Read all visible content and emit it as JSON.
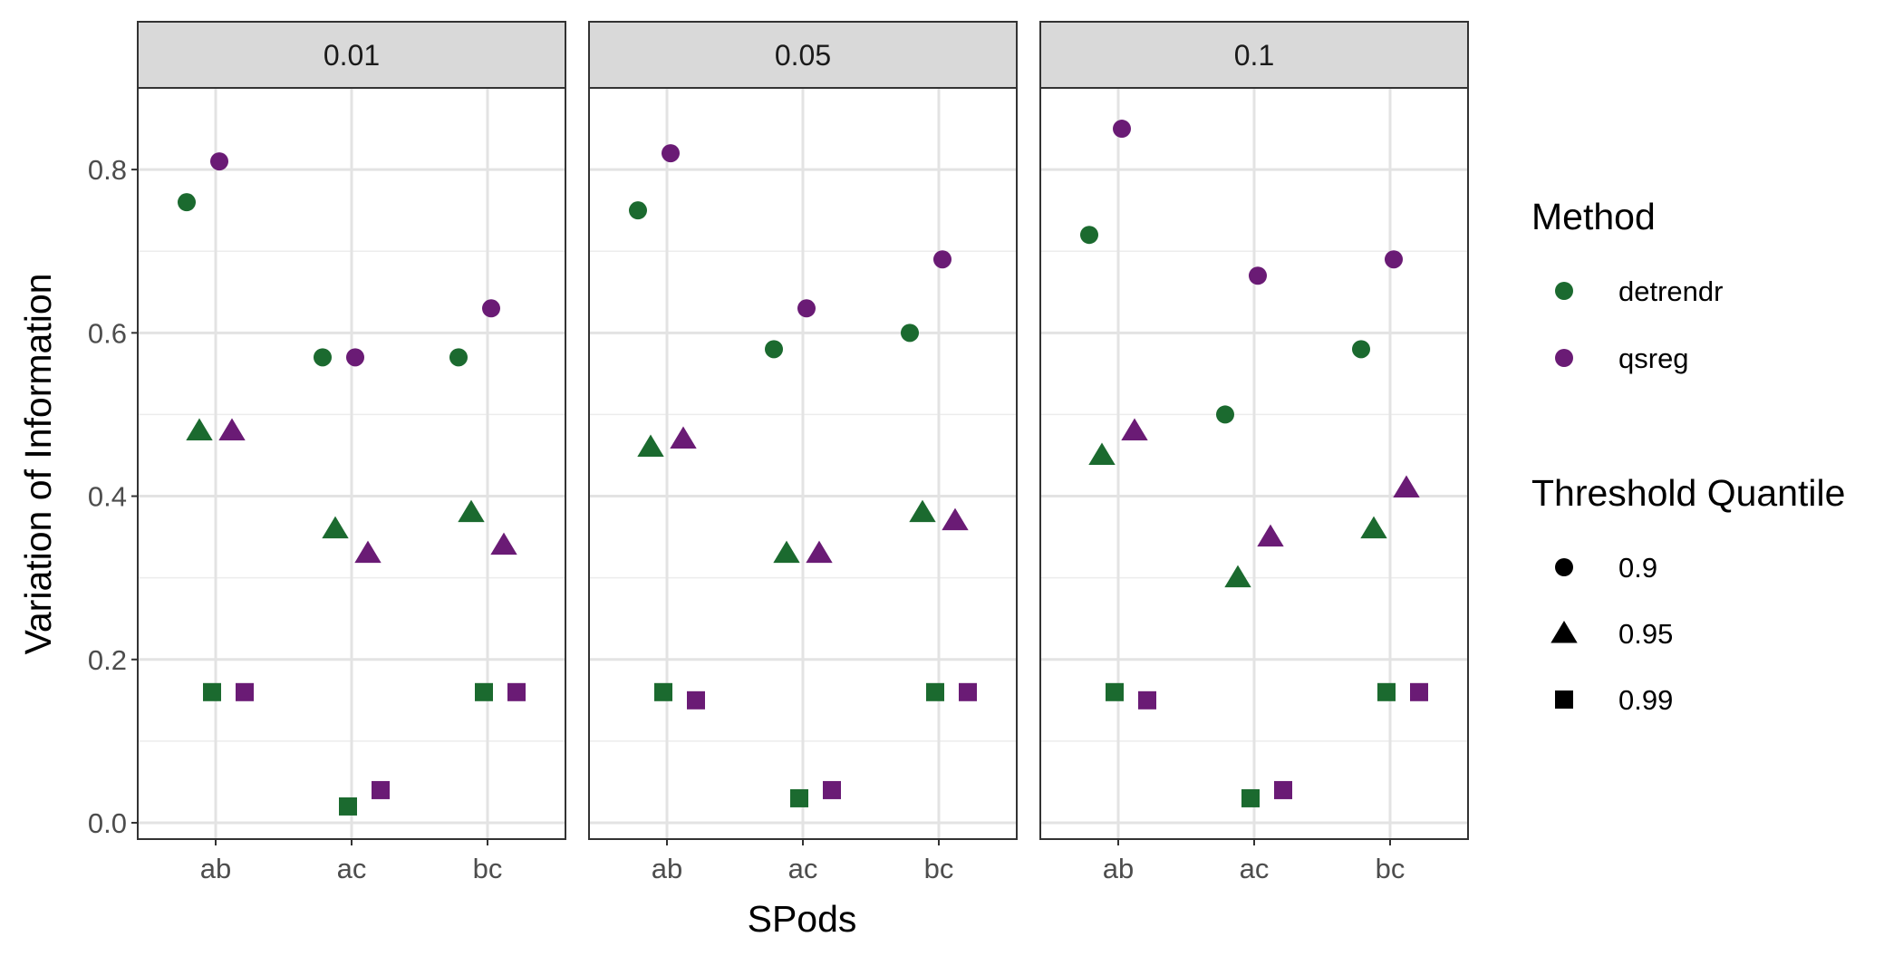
{
  "chart_data": {
    "type": "scatter",
    "xlabel": "SPods",
    "ylabel": "Variation of Information",
    "ylim": [
      -0.02,
      0.9
    ],
    "y_ticks": [
      0.0,
      0.2,
      0.4,
      0.6,
      0.8
    ],
    "y_tick_labels": [
      "0.0",
      "0.2",
      "0.4",
      "0.6",
      "0.8"
    ],
    "categories": [
      "ab",
      "ac",
      "bc"
    ],
    "grid": true,
    "legend_position": "right",
    "methods": [
      {
        "name": "detrendr",
        "color": "#1b6a2f"
      },
      {
        "name": "qsreg",
        "color": "#6a1b75"
      }
    ],
    "threshold_quantiles": [
      {
        "name": "0.9",
        "shape": "circle"
      },
      {
        "name": "0.95",
        "shape": "triangle"
      },
      {
        "name": "0.99",
        "shape": "square"
      }
    ],
    "legend": {
      "method_title": "Method",
      "threshold_title": "Threshold Quantile"
    },
    "panels": [
      {
        "label": "0.01",
        "points": [
          {
            "x": "ab",
            "method": "detrendr",
            "q": "0.9",
            "y": 0.76
          },
          {
            "x": "ab",
            "method": "qsreg",
            "q": "0.9",
            "y": 0.81
          },
          {
            "x": "ab",
            "method": "detrendr",
            "q": "0.95",
            "y": 0.48
          },
          {
            "x": "ab",
            "method": "qsreg",
            "q": "0.95",
            "y": 0.48
          },
          {
            "x": "ab",
            "method": "detrendr",
            "q": "0.99",
            "y": 0.16
          },
          {
            "x": "ab",
            "method": "qsreg",
            "q": "0.99",
            "y": 0.16
          },
          {
            "x": "ac",
            "method": "detrendr",
            "q": "0.9",
            "y": 0.57
          },
          {
            "x": "ac",
            "method": "qsreg",
            "q": "0.9",
            "y": 0.57
          },
          {
            "x": "ac",
            "method": "detrendr",
            "q": "0.95",
            "y": 0.36
          },
          {
            "x": "ac",
            "method": "qsreg",
            "q": "0.95",
            "y": 0.33
          },
          {
            "x": "ac",
            "method": "detrendr",
            "q": "0.99",
            "y": 0.02
          },
          {
            "x": "ac",
            "method": "qsreg",
            "q": "0.99",
            "y": 0.04
          },
          {
            "x": "bc",
            "method": "detrendr",
            "q": "0.9",
            "y": 0.57
          },
          {
            "x": "bc",
            "method": "qsreg",
            "q": "0.9",
            "y": 0.63
          },
          {
            "x": "bc",
            "method": "detrendr",
            "q": "0.95",
            "y": 0.38
          },
          {
            "x": "bc",
            "method": "qsreg",
            "q": "0.95",
            "y": 0.34
          },
          {
            "x": "bc",
            "method": "detrendr",
            "q": "0.99",
            "y": 0.16
          },
          {
            "x": "bc",
            "method": "qsreg",
            "q": "0.99",
            "y": 0.16
          }
        ]
      },
      {
        "label": "0.05",
        "points": [
          {
            "x": "ab",
            "method": "detrendr",
            "q": "0.9",
            "y": 0.75
          },
          {
            "x": "ab",
            "method": "qsreg",
            "q": "0.9",
            "y": 0.82
          },
          {
            "x": "ab",
            "method": "detrendr",
            "q": "0.95",
            "y": 0.46
          },
          {
            "x": "ab",
            "method": "qsreg",
            "q": "0.95",
            "y": 0.47
          },
          {
            "x": "ab",
            "method": "detrendr",
            "q": "0.99",
            "y": 0.16
          },
          {
            "x": "ab",
            "method": "qsreg",
            "q": "0.99",
            "y": 0.15
          },
          {
            "x": "ac",
            "method": "detrendr",
            "q": "0.9",
            "y": 0.58
          },
          {
            "x": "ac",
            "method": "qsreg",
            "q": "0.9",
            "y": 0.63
          },
          {
            "x": "ac",
            "method": "detrendr",
            "q": "0.95",
            "y": 0.33
          },
          {
            "x": "ac",
            "method": "qsreg",
            "q": "0.95",
            "y": 0.33
          },
          {
            "x": "ac",
            "method": "detrendr",
            "q": "0.99",
            "y": 0.03
          },
          {
            "x": "ac",
            "method": "qsreg",
            "q": "0.99",
            "y": 0.04
          },
          {
            "x": "bc",
            "method": "detrendr",
            "q": "0.9",
            "y": 0.6
          },
          {
            "x": "bc",
            "method": "qsreg",
            "q": "0.9",
            "y": 0.69
          },
          {
            "x": "bc",
            "method": "detrendr",
            "q": "0.95",
            "y": 0.38
          },
          {
            "x": "bc",
            "method": "qsreg",
            "q": "0.95",
            "y": 0.37
          },
          {
            "x": "bc",
            "method": "detrendr",
            "q": "0.99",
            "y": 0.16
          },
          {
            "x": "bc",
            "method": "qsreg",
            "q": "0.99",
            "y": 0.16
          }
        ]
      },
      {
        "label": "0.1",
        "points": [
          {
            "x": "ab",
            "method": "detrendr",
            "q": "0.9",
            "y": 0.72
          },
          {
            "x": "ab",
            "method": "qsreg",
            "q": "0.9",
            "y": 0.85
          },
          {
            "x": "ab",
            "method": "detrendr",
            "q": "0.95",
            "y": 0.45
          },
          {
            "x": "ab",
            "method": "qsreg",
            "q": "0.95",
            "y": 0.48
          },
          {
            "x": "ab",
            "method": "detrendr",
            "q": "0.99",
            "y": 0.16
          },
          {
            "x": "ab",
            "method": "qsreg",
            "q": "0.99",
            "y": 0.15
          },
          {
            "x": "ac",
            "method": "detrendr",
            "q": "0.9",
            "y": 0.5
          },
          {
            "x": "ac",
            "method": "qsreg",
            "q": "0.9",
            "y": 0.67
          },
          {
            "x": "ac",
            "method": "detrendr",
            "q": "0.95",
            "y": 0.3
          },
          {
            "x": "ac",
            "method": "qsreg",
            "q": "0.95",
            "y": 0.35
          },
          {
            "x": "ac",
            "method": "detrendr",
            "q": "0.99",
            "y": 0.03
          },
          {
            "x": "ac",
            "method": "qsreg",
            "q": "0.99",
            "y": 0.04
          },
          {
            "x": "bc",
            "method": "detrendr",
            "q": "0.9",
            "y": 0.58
          },
          {
            "x": "bc",
            "method": "qsreg",
            "q": "0.9",
            "y": 0.69
          },
          {
            "x": "bc",
            "method": "detrendr",
            "q": "0.95",
            "y": 0.36
          },
          {
            "x": "bc",
            "method": "qsreg",
            "q": "0.95",
            "y": 0.41
          },
          {
            "x": "bc",
            "method": "detrendr",
            "q": "0.99",
            "y": 0.16
          },
          {
            "x": "bc",
            "method": "qsreg",
            "q": "0.99",
            "y": 0.16
          }
        ]
      }
    ]
  }
}
